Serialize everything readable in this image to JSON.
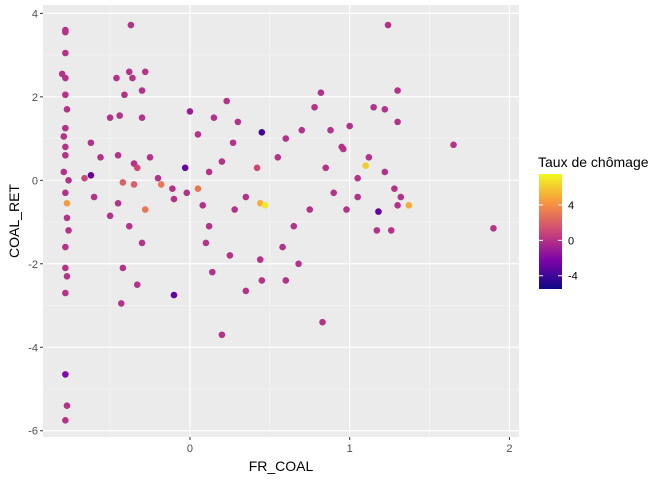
{
  "chart_data": {
    "type": "scatter",
    "xlabel": "FR_COAL",
    "ylabel": "COAL_RET",
    "xlim": [
      -0.92,
      2.06
    ],
    "ylim": [
      -6.15,
      4.2
    ],
    "x_ticks": [
      0,
      1,
      2
    ],
    "x_tick_labels": [
      "0",
      "1",
      "2"
    ],
    "y_ticks": [
      4,
      2,
      0,
      -2,
      -4,
      -6
    ],
    "y_tick_labels": [
      "4",
      "2",
      "0",
      "-2",
      "-4",
      "-6"
    ],
    "grid": true,
    "background": "#ebebeb",
    "legend": {
      "title": "Taux de chômage",
      "position": "right",
      "range": [
        -5.5,
        7.5
      ],
      "ticks": [
        4,
        0,
        -4
      ],
      "tick_labels": [
        "4",
        "0",
        "-4"
      ]
    },
    "colormap": "plasma",
    "points": [
      [
        -0.78,
        3.6,
        0
      ],
      [
        -0.78,
        3.55,
        0
      ],
      [
        -0.78,
        3.05,
        0
      ],
      [
        -0.8,
        2.55,
        0
      ],
      [
        -0.78,
        2.45,
        0
      ],
      [
        -0.78,
        2.05,
        0
      ],
      [
        -0.77,
        1.7,
        0
      ],
      [
        -0.78,
        1.25,
        0
      ],
      [
        -0.78,
        0.6,
        0
      ],
      [
        -0.78,
        -0.3,
        0
      ],
      [
        -0.77,
        -0.9,
        0
      ],
      [
        -0.78,
        -1.6,
        0
      ],
      [
        -0.78,
        -2.1,
        0
      ],
      [
        -0.77,
        -2.3,
        0
      ],
      [
        -0.78,
        -2.7,
        0
      ],
      [
        -0.78,
        -4.65,
        -2
      ],
      [
        -0.77,
        -5.4,
        0
      ],
      [
        -0.78,
        -5.75,
        0
      ],
      [
        -0.79,
        0.2,
        0
      ],
      [
        -0.76,
        0.0,
        0
      ],
      [
        -0.77,
        -0.55,
        4.5
      ],
      [
        -0.79,
        1.05,
        0
      ],
      [
        -0.76,
        -1.2,
        0
      ],
      [
        -0.78,
        0.8,
        0
      ],
      [
        -0.46,
        2.45,
        0
      ],
      [
        -0.36,
        2.45,
        0
      ],
      [
        -0.28,
        2.6,
        0
      ],
      [
        -0.38,
        2.6,
        0
      ],
      [
        -0.37,
        3.72,
        0
      ],
      [
        -0.41,
        2.05,
        0
      ],
      [
        -0.3,
        2.15,
        0
      ],
      [
        -0.44,
        1.55,
        0
      ],
      [
        -0.3,
        1.5,
        0
      ],
      [
        -0.5,
        1.5,
        0
      ],
      [
        -0.62,
        0.9,
        0
      ],
      [
        -0.56,
        0.55,
        0
      ],
      [
        -0.45,
        0.6,
        0
      ],
      [
        -0.35,
        0.4,
        0
      ],
      [
        -0.25,
        0.55,
        0
      ],
      [
        -0.33,
        0.3,
        1
      ],
      [
        -0.66,
        0.05,
        1
      ],
      [
        -0.42,
        -0.05,
        2
      ],
      [
        -0.35,
        -0.1,
        2
      ],
      [
        -0.2,
        0.05,
        0
      ],
      [
        -0.11,
        -0.2,
        0
      ],
      [
        -0.02,
        -0.3,
        0
      ],
      [
        -0.18,
        -0.1,
        3
      ],
      [
        -0.1,
        -0.45,
        0
      ],
      [
        -0.28,
        -0.7,
        3
      ],
      [
        -0.45,
        -0.55,
        0
      ],
      [
        -0.6,
        -0.4,
        0
      ],
      [
        -0.5,
        -0.85,
        0
      ],
      [
        -0.38,
        -1.1,
        0
      ],
      [
        -0.3,
        -1.5,
        0
      ],
      [
        -0.42,
        -2.1,
        0
      ],
      [
        -0.33,
        -2.5,
        0
      ],
      [
        -0.43,
        -2.95,
        0
      ],
      [
        -0.1,
        -2.75,
        -3
      ],
      [
        -0.03,
        0.3,
        -3
      ],
      [
        -0.62,
        0.12,
        -3
      ],
      [
        0.0,
        1.65,
        -1
      ],
      [
        0.05,
        1.1,
        0
      ],
      [
        0.15,
        1.5,
        0
      ],
      [
        0.23,
        1.9,
        0
      ],
      [
        0.3,
        1.4,
        0
      ],
      [
        0.27,
        0.9,
        0
      ],
      [
        0.2,
        0.45,
        0
      ],
      [
        0.12,
        0.2,
        0
      ],
      [
        0.05,
        -0.2,
        3
      ],
      [
        0.08,
        -0.6,
        0
      ],
      [
        0.12,
        -1.1,
        0
      ],
      [
        0.1,
        -1.5,
        0
      ],
      [
        0.14,
        -2.2,
        0
      ],
      [
        0.25,
        -1.8,
        0
      ],
      [
        0.2,
        -3.7,
        0
      ],
      [
        0.28,
        -0.7,
        0
      ],
      [
        0.35,
        -0.4,
        0
      ],
      [
        0.42,
        0.3,
        1
      ],
      [
        0.45,
        1.15,
        -4
      ],
      [
        0.44,
        -0.55,
        5
      ],
      [
        0.47,
        -0.6,
        7
      ],
      [
        0.44,
        -1.9,
        0
      ],
      [
        0.45,
        -2.4,
        0
      ],
      [
        0.35,
        -2.65,
        0
      ],
      [
        0.55,
        0.55,
        0
      ],
      [
        0.6,
        1.0,
        0
      ],
      [
        0.7,
        1.2,
        0
      ],
      [
        0.78,
        1.75,
        0
      ],
      [
        0.82,
        2.1,
        0
      ],
      [
        0.88,
        1.2,
        0
      ],
      [
        0.95,
        0.8,
        0
      ],
      [
        1.0,
        1.3,
        0
      ],
      [
        0.85,
        0.3,
        0
      ],
      [
        0.9,
        -0.3,
        0
      ],
      [
        0.75,
        -0.7,
        0
      ],
      [
        0.65,
        -1.1,
        0
      ],
      [
        0.58,
        -1.6,
        0
      ],
      [
        0.6,
        -2.4,
        0
      ],
      [
        0.68,
        -2.0,
        0
      ],
      [
        0.83,
        -3.4,
        0
      ],
      [
        0.96,
        0.75,
        0
      ],
      [
        1.05,
        0.05,
        0
      ],
      [
        1.1,
        0.35,
        6
      ],
      [
        1.12,
        0.55,
        0
      ],
      [
        1.15,
        1.75,
        0
      ],
      [
        1.22,
        1.7,
        0
      ],
      [
        1.24,
        3.72,
        0
      ],
      [
        1.3,
        2.15,
        0
      ],
      [
        1.3,
        1.4,
        0
      ],
      [
        1.3,
        -0.6,
        0
      ],
      [
        1.37,
        -0.6,
        5
      ],
      [
        1.18,
        -0.75,
        -3
      ],
      [
        1.22,
        0.2,
        0
      ],
      [
        1.28,
        -0.2,
        0
      ],
      [
        1.05,
        -0.4,
        0
      ],
      [
        0.98,
        -0.7,
        0
      ],
      [
        1.17,
        -1.2,
        0
      ],
      [
        1.26,
        -1.2,
        0
      ],
      [
        1.32,
        -0.4,
        0
      ],
      [
        1.65,
        0.85,
        0
      ],
      [
        1.9,
        -1.15,
        0
      ]
    ]
  }
}
